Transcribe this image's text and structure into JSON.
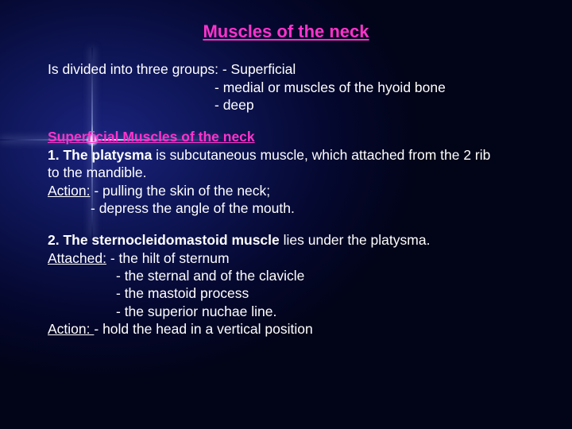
{
  "title": "Muscles of the neck",
  "intro": {
    "line1": "Is divided into three groups: - Superficial",
    "line2": "- medial or muscles of the hyoid bone",
    "line3": "- deep"
  },
  "section1": {
    "heading": "Superficial Muscles of the neck",
    "item1_lead": "1. The platysma",
    "item1_rest": " is subcutaneous muscle, which attached from the 2 rib",
    "item1_cont": "to the mandible.",
    "action_label": "Action:",
    "action1": " - pulling the skin of the neck;",
    "action2": "- depress the angle of the mouth."
  },
  "section2": {
    "item2_lead": "2. The sternocleidomastoid muscle",
    "item2_rest": " lies under the platysma.",
    "attached_label": "Attached:",
    "a1": " - the hilt of sternum",
    "a2": "- the sternal and of the clavicle",
    "a3": "- the mastoid process",
    "a4": "- the superior nuchae line.",
    "action_label": "Action: ",
    "action": "- hold the head in a vertical position"
  },
  "colors": {
    "magenta": "#ff33cc",
    "text": "#ffffff"
  }
}
